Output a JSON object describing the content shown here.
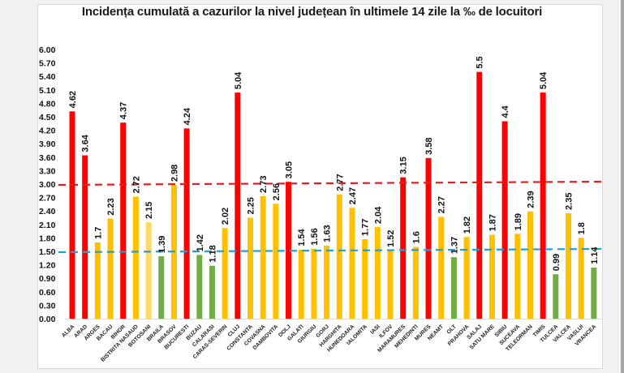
{
  "chart_data": {
    "type": "bar",
    "title": "Incidența cumulată a cazurilor la nivel județean în ultimele 14 zile la ‰ de locuitori",
    "xlabel": "",
    "ylabel": "",
    "ylim": [
      0,
      6
    ],
    "yticks": [
      "0.00",
      "0.30",
      "0.60",
      "0.90",
      "1.20",
      "1.50",
      "1.80",
      "2.10",
      "2.40",
      "2.70",
      "3.00",
      "3.30",
      "3.60",
      "3.90",
      "4.20",
      "4.50",
      "4.80",
      "5.10",
      "5.40",
      "5.70",
      "6.00"
    ],
    "grid": false,
    "legend": "none",
    "categories": [
      "ALBA",
      "ARAD",
      "ARGES",
      "BACAU",
      "BIHOR",
      "BISTRITA NASAUD",
      "BOTOSANI",
      "BRAILA",
      "BRASOV",
      "BUCURESTI",
      "BUZAU",
      "CALARASI",
      "CARAS-SEVERIN",
      "CLUJ",
      "CONSTANTA",
      "COVASNA",
      "DAMBOVITA",
      "DOLJ",
      "GALATI",
      "GIURGIU",
      "GORJ",
      "HARGHITA",
      "HUNEDOARA",
      "IALOMITA",
      "IASI",
      "ILFOV",
      "MARAMURES",
      "MEHEDINTI",
      "MURES",
      "NEAMT",
      "OLT",
      "PRAHOVA",
      "SALAJ",
      "SATU MARE",
      "SIBIU",
      "SUCEAVA",
      "TELEORMAN",
      "TIMIS",
      "TULCEA",
      "VALCEA",
      "VASLUI",
      "VRANCEA"
    ],
    "values": [
      4.62,
      3.64,
      1.7,
      2.23,
      4.37,
      2.72,
      2.15,
      1.39,
      2.98,
      4.24,
      1.42,
      1.18,
      2.02,
      5.04,
      2.25,
      2.73,
      2.56,
      3.05,
      1.54,
      1.56,
      1.63,
      2.77,
      2.47,
      1.77,
      2.04,
      1.52,
      3.15,
      1.6,
      3.58,
      2.27,
      1.37,
      1.82,
      5.5,
      1.87,
      4.4,
      1.89,
      2.39,
      5.04,
      0.99,
      2.35,
      1.8,
      1.14
    ],
    "value_labels": [
      "4.62",
      "3.64",
      "1.7",
      "2.23",
      "4.37",
      "2.72",
      "2.15",
      "1.39",
      "2.98",
      "4.24",
      "1.42",
      "1.18",
      "2.02",
      "5.04",
      "2.25",
      "2.73",
      "2.56",
      "3.05",
      "1.54",
      "1.56",
      "1.63",
      "2.77",
      "2.47",
      "1.77",
      "2.04",
      "1.52",
      "3.15",
      "1.6",
      "3.58",
      "2.27",
      "1.37",
      "1.82",
      "5.5",
      "1.87",
      "4.4",
      "1.89",
      "2.39",
      "5.04",
      "0.99",
      "2.35",
      "1.8",
      "1.14"
    ],
    "bar_colors": [
      "red",
      "red",
      "yellow",
      "yellow",
      "red",
      "yellow",
      "light-yellow",
      "green",
      "yellow",
      "red",
      "green",
      "green",
      "yellow",
      "red",
      "yellow",
      "yellow",
      "yellow",
      "red",
      "yellow",
      "yellow",
      "yellow",
      "yellow",
      "yellow",
      "yellow",
      "yellow",
      "yellow",
      "red",
      "yellow",
      "red",
      "yellow",
      "green",
      "yellow",
      "red",
      "yellow",
      "red",
      "yellow",
      "yellow",
      "red",
      "green",
      "yellow",
      "yellow",
      "green"
    ],
    "palette": {
      "red": "#ff0000",
      "yellow": "#ffc000",
      "light-yellow": "#ffd966",
      "green": "#70ad47"
    },
    "reference_lines": [
      {
        "name": "threshold-3",
        "value": 3.0,
        "color": "#e02020",
        "style": "dashed"
      },
      {
        "name": "threshold-1.5",
        "value": 1.5,
        "color": "#1fa0d8",
        "style": "dashed"
      }
    ]
  }
}
